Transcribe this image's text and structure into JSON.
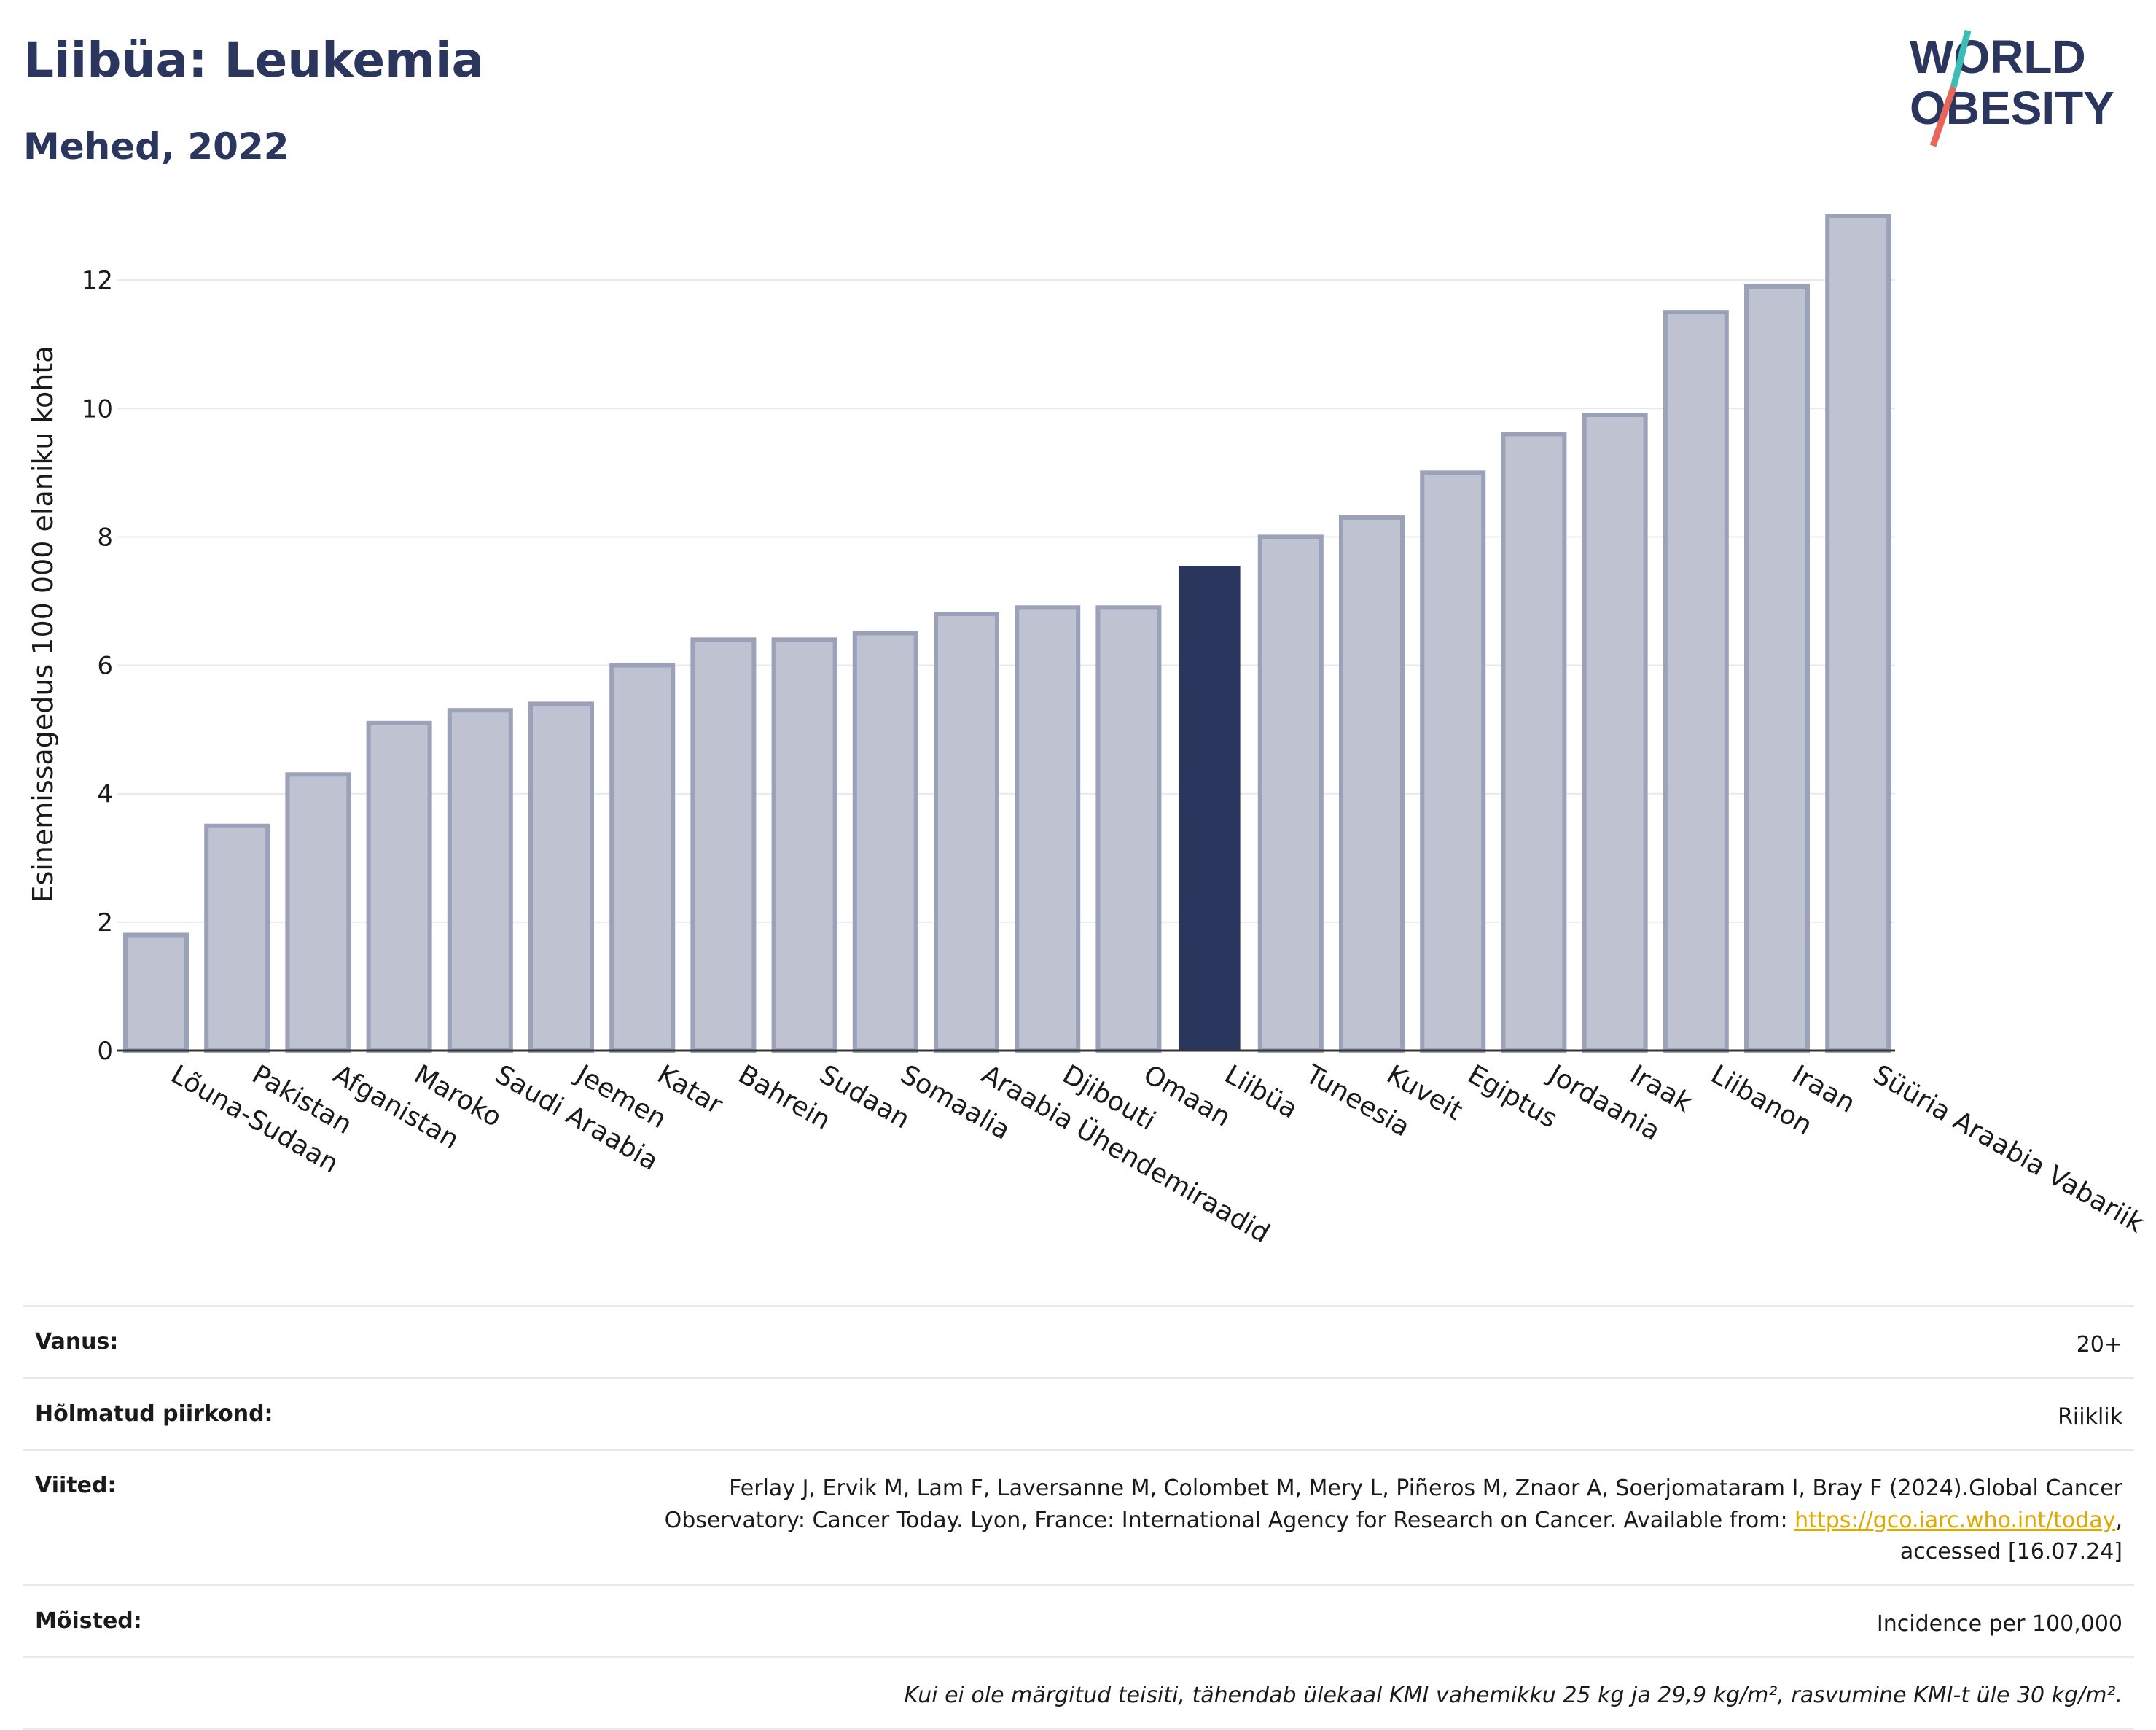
{
  "header": {
    "title": "Liibüa: Leukemia",
    "subtitle": "Mehed, 2022",
    "logo_text_line1": "WORLD",
    "logo_text_line2": "OBESITY"
  },
  "colors": {
    "highlight": "#2b365f",
    "bar_fill": "#bfc3d1",
    "bar_stroke": "#9aa1b8",
    "grid": "#e6e9ef",
    "axis": "#333333",
    "link": "#e0a800",
    "logo_teal": "#3cbcb4",
    "logo_red": "#e8655a"
  },
  "chart_data": {
    "type": "bar",
    "title": "",
    "xlabel": "",
    "ylabel": "Esinemissagedus 100 000 elaniku kohta",
    "ylim": [
      0,
      13.5
    ],
    "yticks": [
      0,
      2,
      4,
      6,
      8,
      10,
      12
    ],
    "grid": true,
    "highlight_category": "Liibüa",
    "categories": [
      "Lõuna-Sudaan",
      "Pakistan",
      "Afganistan",
      "Maroko",
      "Saudi Araabia",
      "Jeemen",
      "Katar",
      "Bahrein",
      "Sudaan",
      "Somaalia",
      "Araabia Ühendemiraadid",
      "Djibouti",
      "Omaan",
      "Liibüa",
      "Tuneesia",
      "Kuveit",
      "Egiptus",
      "Jordaania",
      "Iraak",
      "Liibanon",
      "Iraan",
      "Süüria Araabia Vabariik"
    ],
    "values": [
      1.8,
      3.5,
      4.3,
      5.1,
      5.3,
      5.4,
      6.0,
      6.4,
      6.4,
      6.5,
      6.8,
      6.9,
      6.9,
      7.55,
      8.0,
      8.3,
      9.0,
      9.6,
      9.9,
      11.5,
      11.9,
      13.0
    ]
  },
  "info": {
    "age_label": "Vanus:",
    "age_value": "20+",
    "coverage_label": "Hõlmatud piirkond:",
    "coverage_value": "Riiklik",
    "refs_label": "Viited:",
    "refs_line1": "Ferlay J, Ervik M, Lam F, Laversanne M, Colombet M, Mery L, Piñeros M, Znaor A, Soerjomataram I, Bray F (2024).Global Cancer",
    "refs_line2_pre": "Observatory: Cancer Today. Lyon, France: International Agency for Research on Cancer. Available from: ",
    "refs_link": "https://gco.iarc.who.int/today",
    "refs_line2_post": ",",
    "refs_line3": "accessed [16.07.24]",
    "terms_label": "Mõisted:",
    "terms_value": "Incidence per 100,000",
    "note": "Kui ei ole märgitud teisiti, tähendab ülekaal KMI vahemikku 25 kg ja 29,9 kg/m², rasvumine KMI-t üle 30 kg/m²."
  }
}
